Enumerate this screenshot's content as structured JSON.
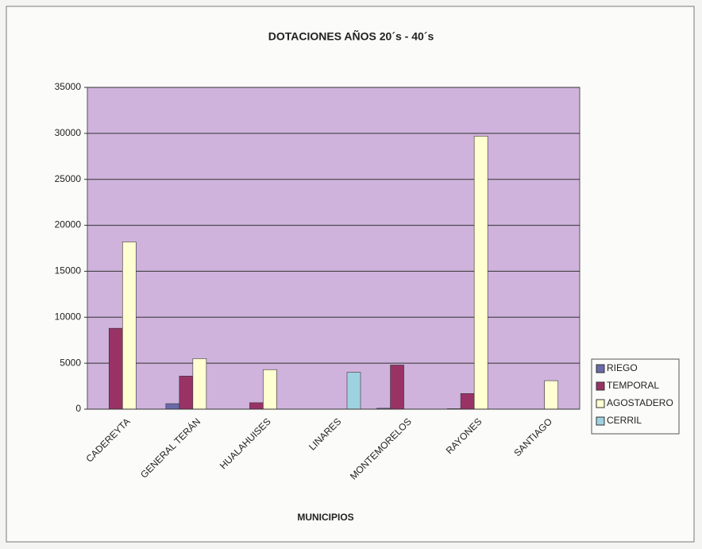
{
  "chart_data": {
    "type": "bar",
    "title": "DOTACIONES AÑOS 20´s - 40´s",
    "x_label": "MUNICIPIOS",
    "categories": [
      "CADEREYTA",
      "GENERAL TERÁN",
      "HUALAHUISES",
      "LINARES",
      "MONTEMORELOS",
      "RAYONES",
      "SANTIAGO"
    ],
    "series": [
      {
        "name": "RIEGO",
        "color": "#6a6aaa",
        "values": [
          0,
          600,
          0,
          0,
          100,
          50,
          0
        ]
      },
      {
        "name": "TEMPORAL",
        "color": "#993366",
        "values": [
          8800,
          3600,
          700,
          0,
          4800,
          1700,
          0
        ]
      },
      {
        "name": "AGOSTADERO",
        "color": "#ffffd2",
        "values": [
          18200,
          5500,
          4300,
          0,
          0,
          29700,
          3100
        ]
      },
      {
        "name": "CERRIL",
        "color": "#9fd2e0",
        "values": [
          0,
          0,
          0,
          4000,
          0,
          0,
          0
        ]
      }
    ],
    "ylim": [
      0,
      35000
    ],
    "yticks": [
      0,
      5000,
      10000,
      15000,
      20000,
      25000,
      30000,
      35000
    ],
    "grid": true,
    "legend": "right"
  }
}
